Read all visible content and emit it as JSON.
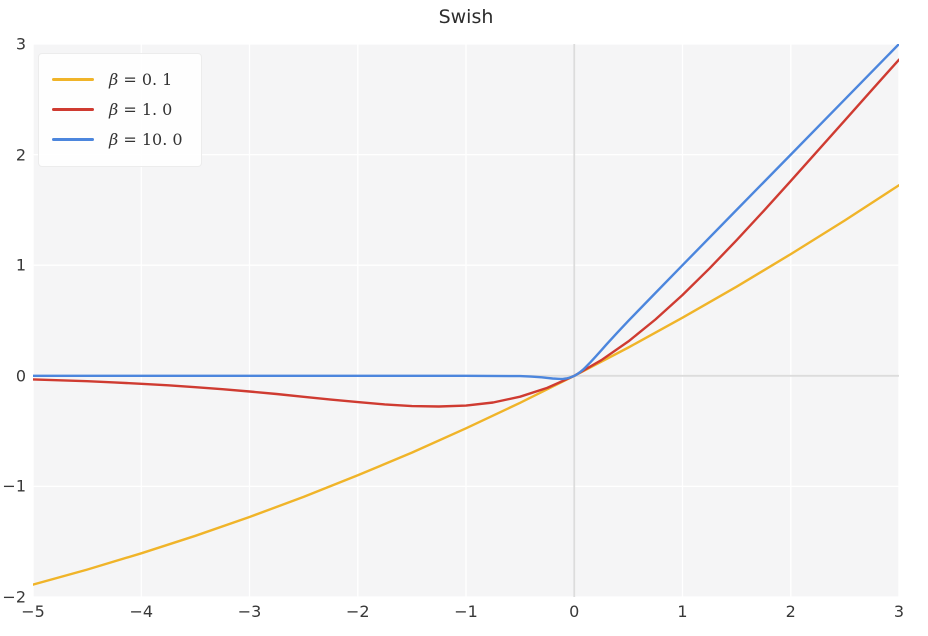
{
  "title": "Swish",
  "colors": {
    "figure_background": "#ffffff",
    "plot_background": "#f5f5f6",
    "grid": "#ffffff",
    "zero_lines": "#dcdcdc",
    "text": "#383838"
  },
  "legend": {
    "items": [
      {
        "symbol": "β",
        "value": " = 0. 1",
        "color": "#f0b429"
      },
      {
        "symbol": "β",
        "value": " = 1. 0",
        "color": "#cf3b31"
      },
      {
        "symbol": "β",
        "value": " = 10. 0",
        "color": "#4c86dd"
      }
    ]
  },
  "chart_data": {
    "type": "line",
    "title": "Swish",
    "xlabel": "",
    "ylabel": "",
    "xlim": [
      -5,
      3
    ],
    "ylim": [
      -2,
      3
    ],
    "xticks": [
      -5,
      -4,
      -3,
      -2,
      -1,
      0,
      1,
      2,
      3
    ],
    "yticks": [
      -2,
      -1,
      0,
      1,
      2,
      3
    ],
    "xtick_labels": [
      "−5",
      "−4",
      "−3",
      "−2",
      "−1",
      "0",
      "1",
      "2",
      "3"
    ],
    "ytick_labels": [
      "−2",
      "−1",
      "0",
      "1",
      "2",
      "3"
    ],
    "grid": true,
    "zero_axis_lines": true,
    "legend_position": "upper left",
    "function": "swish(x) = x * sigmoid(beta * x)",
    "series": [
      {
        "name": "β = 0.1",
        "beta": 0.1,
        "color": "#f0b429",
        "x": [
          -5,
          -4.5,
          -4,
          -3.5,
          -3,
          -2.5,
          -2,
          -1.5,
          -1,
          -0.5,
          0,
          0.5,
          1,
          1.5,
          2,
          2.5,
          3
        ],
        "y": [
          -1.888,
          -1.752,
          -1.605,
          -1.447,
          -1.277,
          -1.095,
          -0.9,
          -0.694,
          -0.475,
          -0.244,
          0,
          0.256,
          0.525,
          0.806,
          1.1,
          1.405,
          1.723
        ]
      },
      {
        "name": "β = 1.0",
        "beta": 1.0,
        "color": "#cf3b31",
        "x": [
          -5,
          -4.75,
          -4.5,
          -4.25,
          -4,
          -3.75,
          -3.5,
          -3.25,
          -3,
          -2.75,
          -2.5,
          -2.25,
          -2,
          -1.75,
          -1.5,
          -1.25,
          -1,
          -0.75,
          -0.5,
          -0.25,
          0,
          0.25,
          0.5,
          0.75,
          1,
          1.25,
          1.5,
          1.75,
          2,
          2.25,
          2.5,
          2.75,
          3
        ],
        "y": [
          -0.033,
          -0.041,
          -0.049,
          -0.06,
          -0.072,
          -0.086,
          -0.103,
          -0.121,
          -0.142,
          -0.165,
          -0.19,
          -0.215,
          -0.238,
          -0.259,
          -0.274,
          -0.278,
          -0.269,
          -0.241,
          -0.189,
          -0.109,
          0,
          0.141,
          0.311,
          0.509,
          0.731,
          0.972,
          1.226,
          1.491,
          1.762,
          2.035,
          2.31,
          2.585,
          2.858
        ]
      },
      {
        "name": "β = 10.0",
        "beta": 10.0,
        "color": "#4c86dd",
        "x": [
          -5,
          -4,
          -3,
          -2,
          -1,
          -0.5,
          -0.4,
          -0.3,
          -0.25,
          -0.2,
          -0.15,
          -0.125,
          -0.1,
          -0.075,
          -0.05,
          -0.025,
          0,
          0.025,
          0.05,
          0.075,
          0.1,
          0.15,
          0.2,
          0.25,
          0.3,
          0.4,
          0.5,
          0.75,
          1,
          1.5,
          2,
          2.5,
          3
        ],
        "y": [
          0,
          0,
          0,
          0,
          0,
          -0.003,
          -0.007,
          -0.014,
          -0.019,
          -0.024,
          -0.027,
          -0.028,
          -0.027,
          -0.024,
          -0.019,
          -0.011,
          0,
          0.014,
          0.031,
          0.051,
          0.073,
          0.123,
          0.176,
          0.231,
          0.286,
          0.393,
          0.497,
          0.749,
          1.0,
          1.5,
          2.0,
          2.5,
          3.0
        ]
      }
    ]
  }
}
